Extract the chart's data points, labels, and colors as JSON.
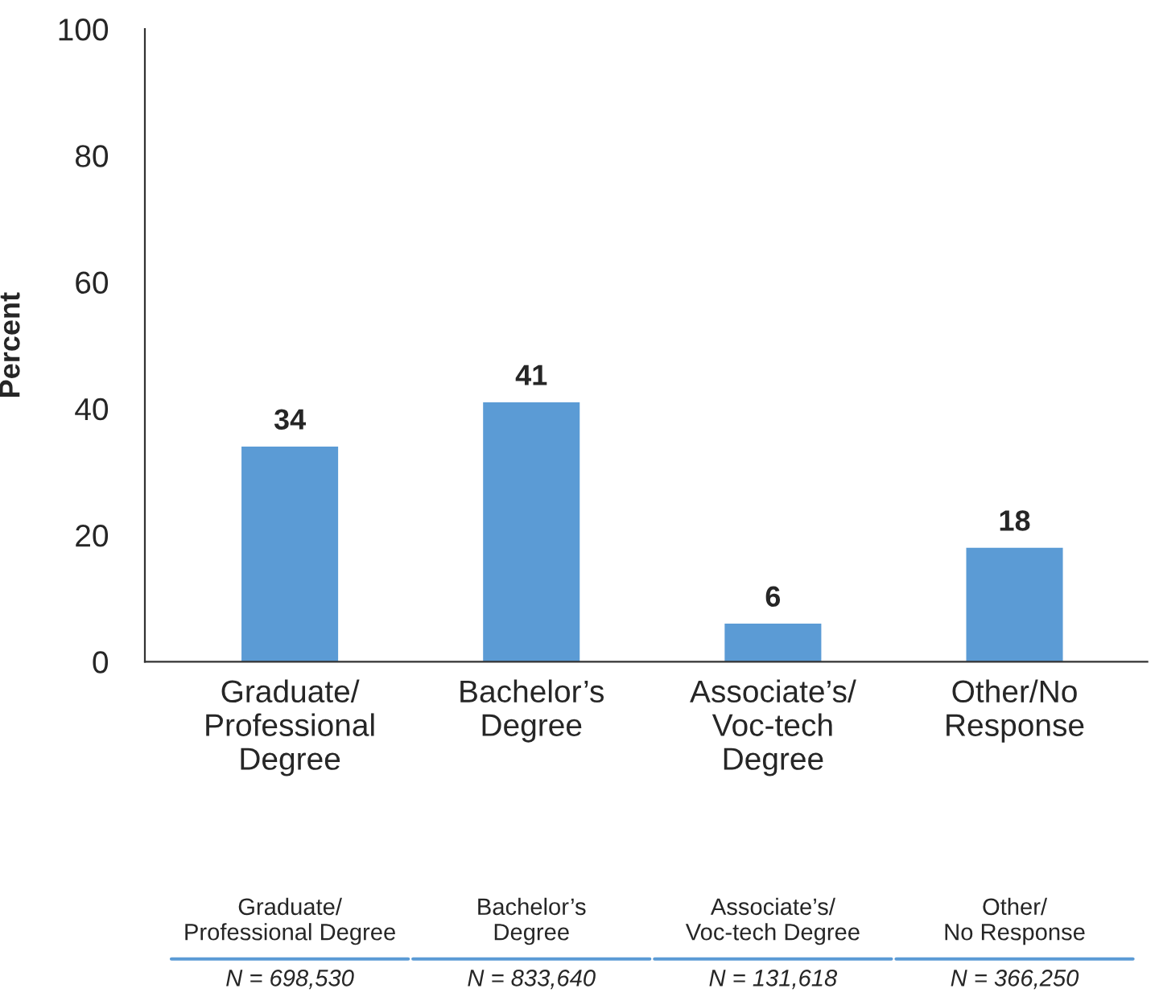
{
  "chart_data": {
    "type": "bar",
    "ylabel": "Percent",
    "categories": [
      "Graduate/\nProfessional\nDegree",
      "Bachelor’s\nDegree",
      "Associate’s/\nVoc-tech\nDegree",
      "Other/No\nResponse"
    ],
    "values": [
      34,
      41,
      6,
      18
    ],
    "color": "#5b9bd5",
    "ylim": [
      0,
      100
    ],
    "yticks": [
      0,
      20,
      40,
      60,
      80,
      100
    ],
    "grid": false,
    "data_labels": true,
    "annotations": [
      "Graduate/\nProfessional Degree",
      "Bachelor’s\nDegree",
      "Associate’s/\nVoc-tech Degree",
      "Other/\nNo Response",
      "N = 698,530",
      "N = 833,640",
      "N = 131,618",
      "N = 366,250"
    ]
  }
}
